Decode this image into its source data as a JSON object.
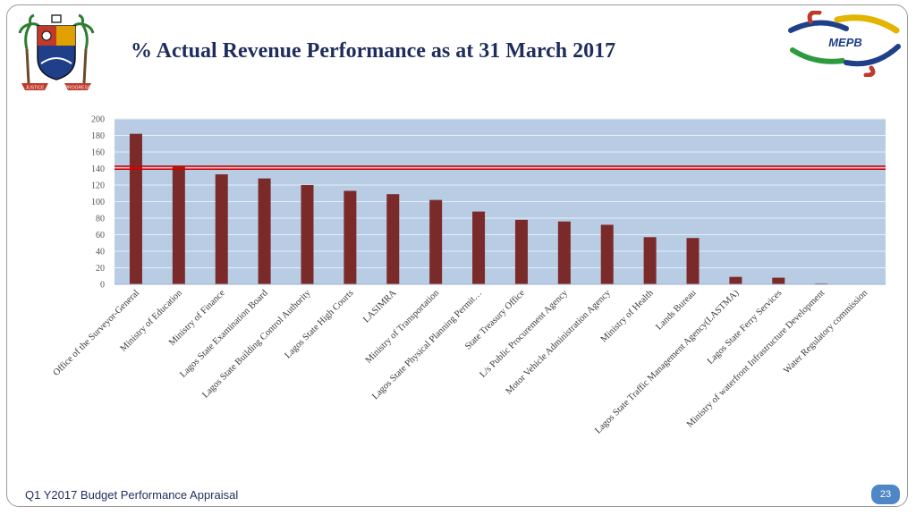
{
  "slide": {
    "title": "% Actual Revenue Performance as at 31 March 2017",
    "footer": "Q1 Y2017 Budget Performance Appraisal",
    "page_number": "23"
  },
  "branding": {
    "crest_icon": "lagos-state-coat-of-arms",
    "crest_motto_left": "JUSTICE",
    "crest_motto_right": "PROGRESS",
    "logo_icon": "mepb-logo",
    "logo_text": "MEPB"
  },
  "colors": {
    "bar": "#7b2a2a",
    "plot_background": "#b8cde4",
    "gridline": "#e6eef7",
    "reference_line": "#d40000",
    "title": "#1f2d5c",
    "page_badge": "#4f86c6"
  },
  "chart_data": {
    "type": "bar",
    "title": "% Actual Revenue Performance as at 31 March 2017",
    "xlabel": "",
    "ylabel": "",
    "ylim": [
      0,
      200
    ],
    "yticks": [
      0,
      20,
      40,
      60,
      80,
      100,
      120,
      140,
      160,
      180,
      200
    ],
    "grid": true,
    "legend": "none",
    "reference_line": 141,
    "categories": [
      "Office of the Surveyor-General",
      "Ministry of Education",
      "Ministry of Finance",
      "Lagos State Examination Board",
      "Lagos State Building Control Authority",
      "Lagos State High Courts",
      "LASIMRA",
      "Ministry of Transportation",
      "Lagos State Physical Planning Permit…",
      "State Treasury Office",
      "L/s Public Procurement Agency",
      "Motor Vehicle Administration Agency",
      "Ministry of Health",
      "Lands Bureau",
      "Lagos State Traffic Management Agency(LASTMA)",
      "Lagos State Ferry Services",
      "Ministry of waterfront Infrastructure Development",
      "Water Regulatory commission"
    ],
    "values": [
      182,
      143,
      133,
      128,
      120,
      113,
      109,
      102,
      88,
      78,
      76,
      72,
      57,
      56,
      9,
      8,
      1,
      0.5
    ]
  }
}
